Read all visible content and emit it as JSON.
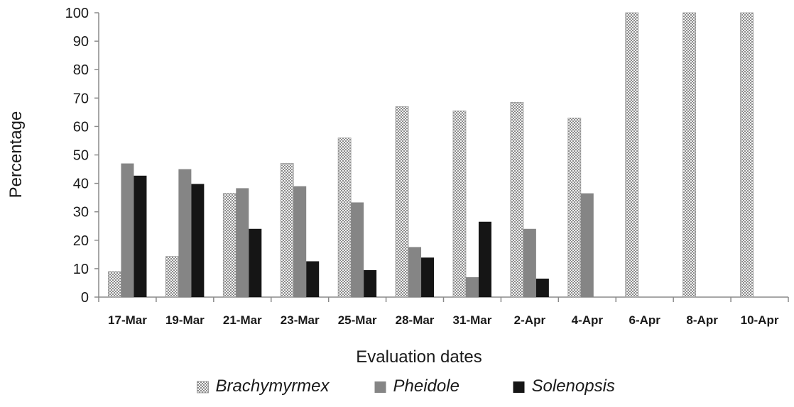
{
  "chart_data": {
    "type": "bar",
    "title": "",
    "xlabel": "Evaluation dates",
    "ylabel": "Percentage",
    "ylim": [
      0,
      100
    ],
    "yticks": [
      0,
      10,
      20,
      30,
      40,
      50,
      60,
      70,
      80,
      90,
      100
    ],
    "grid": false,
    "legend_position": "bottom",
    "categories": [
      "17-Mar",
      "19-Mar",
      "21-Mar",
      "23-Mar",
      "25-Mar",
      "28-Mar",
      "31-Mar",
      "2-Apr",
      "4-Apr",
      "6-Apr",
      "8-Apr",
      "10-Apr"
    ],
    "series": [
      {
        "name": "Brachymyrmex",
        "pattern": "checkered",
        "color": "#bdbdbd",
        "values": [
          9,
          14.3,
          36.5,
          47,
          56,
          67,
          65.5,
          68.5,
          63,
          100,
          100,
          100
        ]
      },
      {
        "name": "Pheidole",
        "pattern": "solid",
        "color": "#858585",
        "values": [
          47,
          45,
          38.3,
          39,
          33.3,
          17.6,
          7,
          24,
          36.5,
          0,
          0,
          0
        ]
      },
      {
        "name": "Solenopsis",
        "pattern": "solid",
        "color": "#151515",
        "values": [
          42.7,
          39.8,
          24,
          12.6,
          9.5,
          13.9,
          26.5,
          6.5,
          0,
          0,
          0,
          0
        ]
      }
    ]
  }
}
